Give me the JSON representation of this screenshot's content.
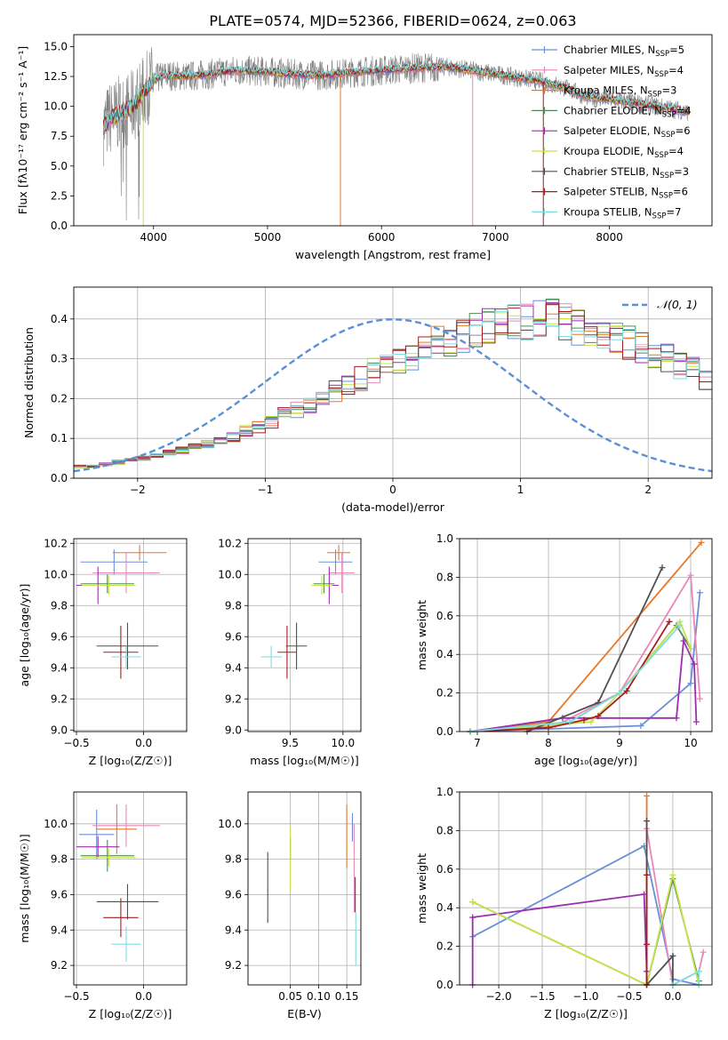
{
  "figure": {
    "title": "PLATE=0574, MJD=52366, FIBERID=0624, z=0.063"
  },
  "colors": {
    "chabrier_miles": "#6a8fd8",
    "salpeter_miles": "#e887b8",
    "kroupa_miles": "#e8782a",
    "chabrier_elodie": "#4f8a5a",
    "salpeter_elodie": "#9b2fae",
    "kroupa_elodie": "#c8e34a",
    "chabrier_stelib": "#505050",
    "salpeter_stelib": "#a81c1c",
    "kroupa_stelib": "#7fdde0",
    "data_grey": "#808080",
    "normal": "#5b8fd6"
  },
  "legend": {
    "items": [
      {
        "label": "Chabrier MILES, N",
        "sub": "SSP",
        "suffix": "=5",
        "color": "#6a8fd8"
      },
      {
        "label": "Salpeter MILES, N",
        "sub": "SSP",
        "suffix": "=4",
        "color": "#e887b8"
      },
      {
        "label": "Kroupa MILES, N",
        "sub": "SSP",
        "suffix": "=3",
        "color": "#e8782a"
      },
      {
        "label": "Chabrier ELODIE, N",
        "sub": "SSP",
        "suffix": "=4",
        "color": "#4f8a5a"
      },
      {
        "label": "Salpeter ELODIE, N",
        "sub": "SSP",
        "suffix": "=6",
        "color": "#9b2fae"
      },
      {
        "label": "Kroupa ELODIE, N",
        "sub": "SSP",
        "suffix": "=4",
        "color": "#c8e34a"
      },
      {
        "label": "Chabrier STELIB, N",
        "sub": "SSP",
        "suffix": "=3",
        "color": "#505050"
      },
      {
        "label": "Salpeter STELIB, N",
        "sub": "SSP",
        "suffix": "=6",
        "color": "#a81c1c"
      },
      {
        "label": "Kroupa STELIB, N",
        "sub": "SSP",
        "suffix": "=7",
        "color": "#7fdde0"
      }
    ],
    "normal_label": "𝒩(0, 1)"
  },
  "chart_data": [
    {
      "id": "spectrum",
      "type": "line",
      "xlabel": "wavelength [Angstrom, rest frame]",
      "ylabel": "Flux [fλ10⁻¹⁷ erg cm⁻² s⁻¹ A⁻¹]",
      "xlim": [
        3300,
        8900
      ],
      "ylim": [
        0,
        16
      ],
      "xticks": [
        "4000",
        "5000",
        "6000",
        "7000",
        "8000"
      ],
      "yticks": [
        "0.0",
        "2.5",
        "5.0",
        "7.5",
        "10.0",
        "12.5",
        "15.0"
      ],
      "continuum": [
        [
          3560,
          8.2
        ],
        [
          3620,
          9.0
        ],
        [
          3700,
          9.4
        ],
        [
          3800,
          9.8
        ],
        [
          3900,
          11.0
        ],
        [
          4000,
          12.2
        ],
        [
          4100,
          12.6
        ],
        [
          4300,
          12.5
        ],
        [
          4500,
          12.7
        ],
        [
          4700,
          13.0
        ],
        [
          5000,
          12.9
        ],
        [
          5200,
          12.7
        ],
        [
          5500,
          12.6
        ],
        [
          5800,
          12.9
        ],
        [
          6000,
          13.0
        ],
        [
          6300,
          13.2
        ],
        [
          6560,
          13.3
        ],
        [
          6800,
          13.0
        ],
        [
          7000,
          12.7
        ],
        [
          7200,
          12.4
        ],
        [
          7400,
          12.1
        ],
        [
          7600,
          11.6
        ],
        [
          7800,
          10.8
        ],
        [
          8000,
          10.6
        ],
        [
          8200,
          10.3
        ],
        [
          8400,
          10.0
        ],
        [
          8600,
          9.7
        ],
        [
          8700,
          9.5
        ]
      ],
      "model_spikes": [
        3910,
        5640,
        6800,
        7420
      ]
    },
    {
      "id": "residuals",
      "type": "histogram",
      "xlabel": "(data-model)/error",
      "ylabel": "Normed distribution",
      "xlim": [
        -2.5,
        2.5
      ],
      "ylim": [
        0,
        0.48
      ],
      "xticks": [
        "−2",
        "−1",
        "0",
        "1",
        "2"
      ],
      "yticks": [
        "0.0",
        "0.1",
        "0.2",
        "0.3",
        "0.4"
      ],
      "bin_width": 0.1,
      "series_envelope": [
        0.03,
        0.03,
        0.035,
        0.04,
        0.045,
        0.05,
        0.055,
        0.065,
        0.07,
        0.08,
        0.085,
        0.095,
        0.105,
        0.12,
        0.13,
        0.14,
        0.16,
        0.17,
        0.18,
        0.2,
        0.22,
        0.24,
        0.25,
        0.27,
        0.28,
        0.3,
        0.31,
        0.33,
        0.34,
        0.35,
        0.36,
        0.37,
        0.38,
        0.385,
        0.39,
        0.395,
        0.4,
        0.4,
        0.39,
        0.38,
        0.37,
        0.36,
        0.35,
        0.34,
        0.33,
        0.31,
        0.3,
        0.28,
        0.27,
        0.25,
        0.24,
        0.22,
        0.2,
        0.19,
        0.17,
        0.16,
        0.14,
        0.13,
        0.12,
        0.105,
        0.095,
        0.085,
        0.08,
        0.07,
        0.065,
        0.055,
        0.05,
        0.045,
        0.04,
        0.035,
        0.03,
        0.03,
        0.025,
        0.025,
        0.02,
        0.02,
        0.02,
        0.02,
        0.02,
        0.02,
        0.02,
        0.02,
        0.02,
        0.02,
        0.02,
        0.02,
        0.02,
        0.02,
        0.02,
        0.02,
        0.02,
        0.02,
        0.02,
        0.02,
        0.02,
        0.02,
        0.02,
        0.02,
        0.02,
        0.02
      ],
      "normal_curve": "N(0,1)"
    },
    {
      "id": "age_vs_Z",
      "type": "scatter",
      "xlabel": "Z [log₁₀(Z/Z☉)]",
      "ylabel": "age  [log₁₀(age/yr)]",
      "xlim": [
        -0.52,
        0.32
      ],
      "ylim": [
        8.99,
        10.23
      ],
      "xticks": [
        "−0.5",
        "0.0"
      ],
      "yticks": [
        "9.0",
        "9.2",
        "9.4",
        "9.6",
        "9.8",
        "10.0",
        "10.2"
      ],
      "points": [
        {
          "series": "Chabrier MILES",
          "x": -0.22,
          "y": 10.08,
          "xerr": 0.25,
          "yerr": 0.08
        },
        {
          "series": "Salpeter MILES",
          "x": -0.13,
          "y": 10.01,
          "xerr": 0.25,
          "yerr": 0.13
        },
        {
          "series": "Kroupa MILES",
          "x": -0.03,
          "y": 10.14,
          "xerr": 0.2,
          "yerr": 0.05
        },
        {
          "series": "Chabrier ELODIE",
          "x": -0.27,
          "y": 9.94,
          "xerr": 0.2,
          "yerr": 0.06
        },
        {
          "series": "Salpeter ELODIE",
          "x": -0.34,
          "y": 9.93,
          "xerr": 0.16,
          "yerr": 0.12
        },
        {
          "series": "Kroupa ELODIE",
          "x": -0.26,
          "y": 9.93,
          "xerr": 0.2,
          "yerr": 0.06
        },
        {
          "series": "Chabrier STELIB",
          "x": -0.12,
          "y": 9.54,
          "xerr": 0.23,
          "yerr": 0.15
        },
        {
          "series": "Salpeter STELIB",
          "x": -0.17,
          "y": 9.5,
          "xerr": 0.13,
          "yerr": 0.17
        },
        {
          "series": "Kroupa STELIB",
          "x": -0.13,
          "y": 9.47,
          "xerr": 0.11,
          "yerr": 0.07
        }
      ]
    },
    {
      "id": "age_vs_mass",
      "type": "scatter",
      "xlabel": "mass [log₁₀(M/M☉)]",
      "xlim": [
        9.1,
        10.17
      ],
      "ylim": [
        8.99,
        10.23
      ],
      "xticks": [
        "9.5",
        "10.0"
      ],
      "yticks": [
        "9.0",
        "9.2",
        "9.4",
        "9.6",
        "9.8",
        "10.0",
        "10.2"
      ],
      "points": [
        {
          "series": "Chabrier MILES",
          "x": 9.93,
          "y": 10.08,
          "xerr": 0.16,
          "yerr": 0.08
        },
        {
          "series": "Salpeter MILES",
          "x": 9.99,
          "y": 10.01,
          "xerr": 0.12,
          "yerr": 0.13
        },
        {
          "series": "Kroupa MILES",
          "x": 9.96,
          "y": 10.14,
          "xerr": 0.11,
          "yerr": 0.05
        },
        {
          "series": "Chabrier ELODIE",
          "x": 9.82,
          "y": 9.94,
          "xerr": 0.1,
          "yerr": 0.06
        },
        {
          "series": "Salpeter ELODIE",
          "x": 9.87,
          "y": 9.93,
          "xerr": 0.09,
          "yerr": 0.12
        },
        {
          "series": "Kroupa ELODIE",
          "x": 9.8,
          "y": 9.93,
          "xerr": 0.1,
          "yerr": 0.06
        },
        {
          "series": "Chabrier STELIB",
          "x": 9.56,
          "y": 9.54,
          "xerr": 0.1,
          "yerr": 0.15
        },
        {
          "series": "Salpeter STELIB",
          "x": 9.47,
          "y": 9.5,
          "xerr": 0.09,
          "yerr": 0.17
        },
        {
          "series": "Kroupa STELIB",
          "x": 9.32,
          "y": 9.47,
          "xerr": 0.1,
          "yerr": 0.07
        }
      ]
    },
    {
      "id": "weight_vs_age",
      "type": "line",
      "xlabel": "age  [log₁₀(age/yr)]",
      "ylabel": "mass weight",
      "xlim": [
        6.75,
        10.3
      ],
      "ylim": [
        0,
        1
      ],
      "xticks": [
        "7",
        "8",
        "9",
        "10"
      ],
      "yticks": [
        "0.0",
        "0.2",
        "0.4",
        "0.6",
        "0.8",
        "1.0"
      ],
      "series": [
        {
          "name": "Chabrier MILES",
          "x": [
            6.9,
            9.3,
            10.0,
            10.13
          ],
          "y": [
            0.0,
            0.03,
            0.25,
            0.72
          ]
        },
        {
          "name": "Salpeter MILES",
          "x": [
            6.9,
            8.1,
            9.0,
            10.0,
            10.13
          ],
          "y": [
            0.0,
            0.03,
            0.2,
            0.81,
            0.17
          ]
        },
        {
          "name": "Kroupa MILES",
          "x": [
            6.9,
            8.0,
            10.15
          ],
          "y": [
            0.0,
            0.05,
            0.98
          ]
        },
        {
          "name": "Chabrier ELODIE",
          "x": [
            6.9,
            8.3,
            9.0,
            9.8,
            10.0
          ],
          "y": [
            0.0,
            0.05,
            0.2,
            0.55,
            0.43
          ]
        },
        {
          "name": "Salpeter ELODIE",
          "x": [
            6.9,
            8.2,
            9.8,
            9.9,
            10.05,
            10.08
          ],
          "y": [
            0.0,
            0.07,
            0.07,
            0.47,
            0.35,
            0.05
          ]
        },
        {
          "name": "Kroupa ELODIE",
          "x": [
            6.9,
            8.6,
            9.0,
            9.85,
            10.0
          ],
          "y": [
            0.0,
            0.05,
            0.2,
            0.57,
            0.43
          ]
        },
        {
          "name": "Chabrier STELIB",
          "x": [
            7.7,
            8.7,
            9.6
          ],
          "y": [
            0.0,
            0.15,
            0.85
          ]
        },
        {
          "name": "Salpeter STELIB",
          "x": [
            6.9,
            8.0,
            8.5,
            8.7,
            9.1,
            9.7
          ],
          "y": [
            0.0,
            0.02,
            0.06,
            0.08,
            0.21,
            0.57
          ]
        },
        {
          "name": "Kroupa STELIB",
          "x": [
            6.9,
            8.3,
            9.0,
            9.85
          ],
          "y": [
            0.0,
            0.05,
            0.2,
            0.55
          ]
        }
      ]
    },
    {
      "id": "mass_vs_Z",
      "type": "scatter",
      "xlabel": "Z [log₁₀(Z/Z☉)]",
      "ylabel": "mass [log₁₀(M/M☉)]",
      "xlim": [
        -0.52,
        0.32
      ],
      "ylim": [
        9.09,
        10.18
      ],
      "xticks": [
        "−0.5",
        "0.0"
      ],
      "yticks": [
        "9.2",
        "9.4",
        "9.6",
        "9.8",
        "10.0"
      ],
      "points": [
        {
          "series": "Chabrier MILES",
          "x": -0.35,
          "y": 9.94,
          "xerr": 0.13,
          "yerr": 0.14
        },
        {
          "series": "Salpeter MILES",
          "x": -0.13,
          "y": 9.99,
          "xerr": 0.25,
          "yerr": 0.12
        },
        {
          "series": "Kroupa MILES",
          "x": -0.2,
          "y": 9.97,
          "xerr": 0.15,
          "yerr": 0.14
        },
        {
          "series": "Chabrier ELODIE",
          "x": -0.27,
          "y": 9.82,
          "xerr": 0.2,
          "yerr": 0.09
        },
        {
          "series": "Salpeter ELODIE",
          "x": -0.34,
          "y": 9.87,
          "xerr": 0.16,
          "yerr": 0.06
        },
        {
          "series": "Kroupa ELODIE",
          "x": -0.26,
          "y": 9.81,
          "xerr": 0.2,
          "yerr": 0.05
        },
        {
          "series": "Chabrier STELIB",
          "x": -0.12,
          "y": 9.56,
          "xerr": 0.23,
          "yerr": 0.1
        },
        {
          "series": "Salpeter STELIB",
          "x": -0.17,
          "y": 9.47,
          "xerr": 0.13,
          "yerr": 0.11
        },
        {
          "series": "Kroupa STELIB",
          "x": -0.13,
          "y": 9.32,
          "xerr": 0.11,
          "yerr": 0.1
        }
      ]
    },
    {
      "id": "mass_vs_ebv",
      "type": "scatter",
      "xlabel": "E(B-V)",
      "xlim": [
        -0.025,
        0.175
      ],
      "ylim": [
        9.09,
        10.18
      ],
      "xticks": [
        "0.05",
        "0.10",
        "0.15"
      ],
      "yticks": [
        "9.2",
        "9.4",
        "9.6",
        "9.8",
        "10.0"
      ],
      "points": [
        {
          "series": "Chabrier STELIB",
          "x": 0.01,
          "y": 9.64,
          "yerr": 0.2
        },
        {
          "series": "Salpeter ELODIE",
          "x": 0.05,
          "y": 9.86,
          "yerr": 0.06
        },
        {
          "series": "Kroupa ELODIE",
          "x": 0.05,
          "y": 9.8,
          "yerr": 0.18
        },
        {
          "series": "Kroupa MILES",
          "x": 0.15,
          "y": 9.93,
          "yerr": 0.18
        },
        {
          "series": "Chabrier MILES",
          "x": 0.16,
          "y": 9.98,
          "yerr": 0.08
        },
        {
          "series": "Salpeter MILES",
          "x": 0.163,
          "y": 9.75,
          "yerr": 0.25
        },
        {
          "series": "Salpeter STELIB",
          "x": 0.165,
          "y": 9.6,
          "yerr": 0.1
        },
        {
          "series": "Kroupa STELIB",
          "x": 0.166,
          "y": 9.35,
          "yerr": 0.15
        }
      ]
    },
    {
      "id": "weight_vs_Z",
      "type": "line",
      "xlabel": "Z [log₁₀(Z/Z☉)]",
      "ylabel": "mass weight",
      "xlim": [
        -2.45,
        0.45
      ],
      "ylim": [
        0,
        1
      ],
      "xticks": [
        "−2.0",
        "−1.5",
        "−1.0",
        "−0.5",
        "0.0"
      ],
      "yticks": [
        "0.0",
        "0.2",
        "0.4",
        "0.6",
        "0.8",
        "1.0"
      ],
      "series": [
        {
          "name": "Chabrier MILES",
          "x": [
            -2.3,
            -0.33,
            0.0,
            0.3
          ],
          "y": [
            0.25,
            0.72,
            0.03,
            0.0
          ]
        },
        {
          "name": "Salpeter MILES",
          "x": [
            -0.3,
            0.0,
            0.3,
            0.35
          ],
          "y": [
            0.81,
            0.0,
            0.07,
            0.17
          ]
        },
        {
          "name": "Kroupa MILES",
          "x": [
            -0.3,
            -0.3
          ],
          "y": [
            0.98,
            0.0
          ]
        },
        {
          "name": "Chabrier ELODIE",
          "x": [
            -2.3,
            -0.3,
            0.0,
            0.3
          ],
          "y": [
            0.43,
            0.0,
            0.55,
            0.02
          ]
        },
        {
          "name": "Salpeter ELODIE",
          "x": [
            -2.3,
            -2.3,
            -0.33,
            -0.3
          ],
          "y": [
            0.0,
            0.35,
            0.47,
            0.07
          ]
        },
        {
          "name": "Kroupa ELODIE",
          "x": [
            -2.3,
            -0.3,
            0.0,
            0.3
          ],
          "y": [
            0.43,
            0.0,
            0.57,
            0.0
          ]
        },
        {
          "name": "Chabrier STELIB",
          "x": [
            -0.3,
            -0.3,
            0.0,
            0.0
          ],
          "y": [
            0.85,
            0.0,
            0.15,
            0.0
          ]
        },
        {
          "name": "Salpeter STELIB",
          "x": [
            -0.3,
            -0.3,
            -0.3
          ],
          "y": [
            0.57,
            0.21,
            0.0
          ]
        },
        {
          "name": "Kroupa STELIB",
          "x": [
            0.0,
            0.3,
            0.3
          ],
          "y": [
            0.0,
            0.07,
            0.0
          ]
        }
      ]
    }
  ]
}
